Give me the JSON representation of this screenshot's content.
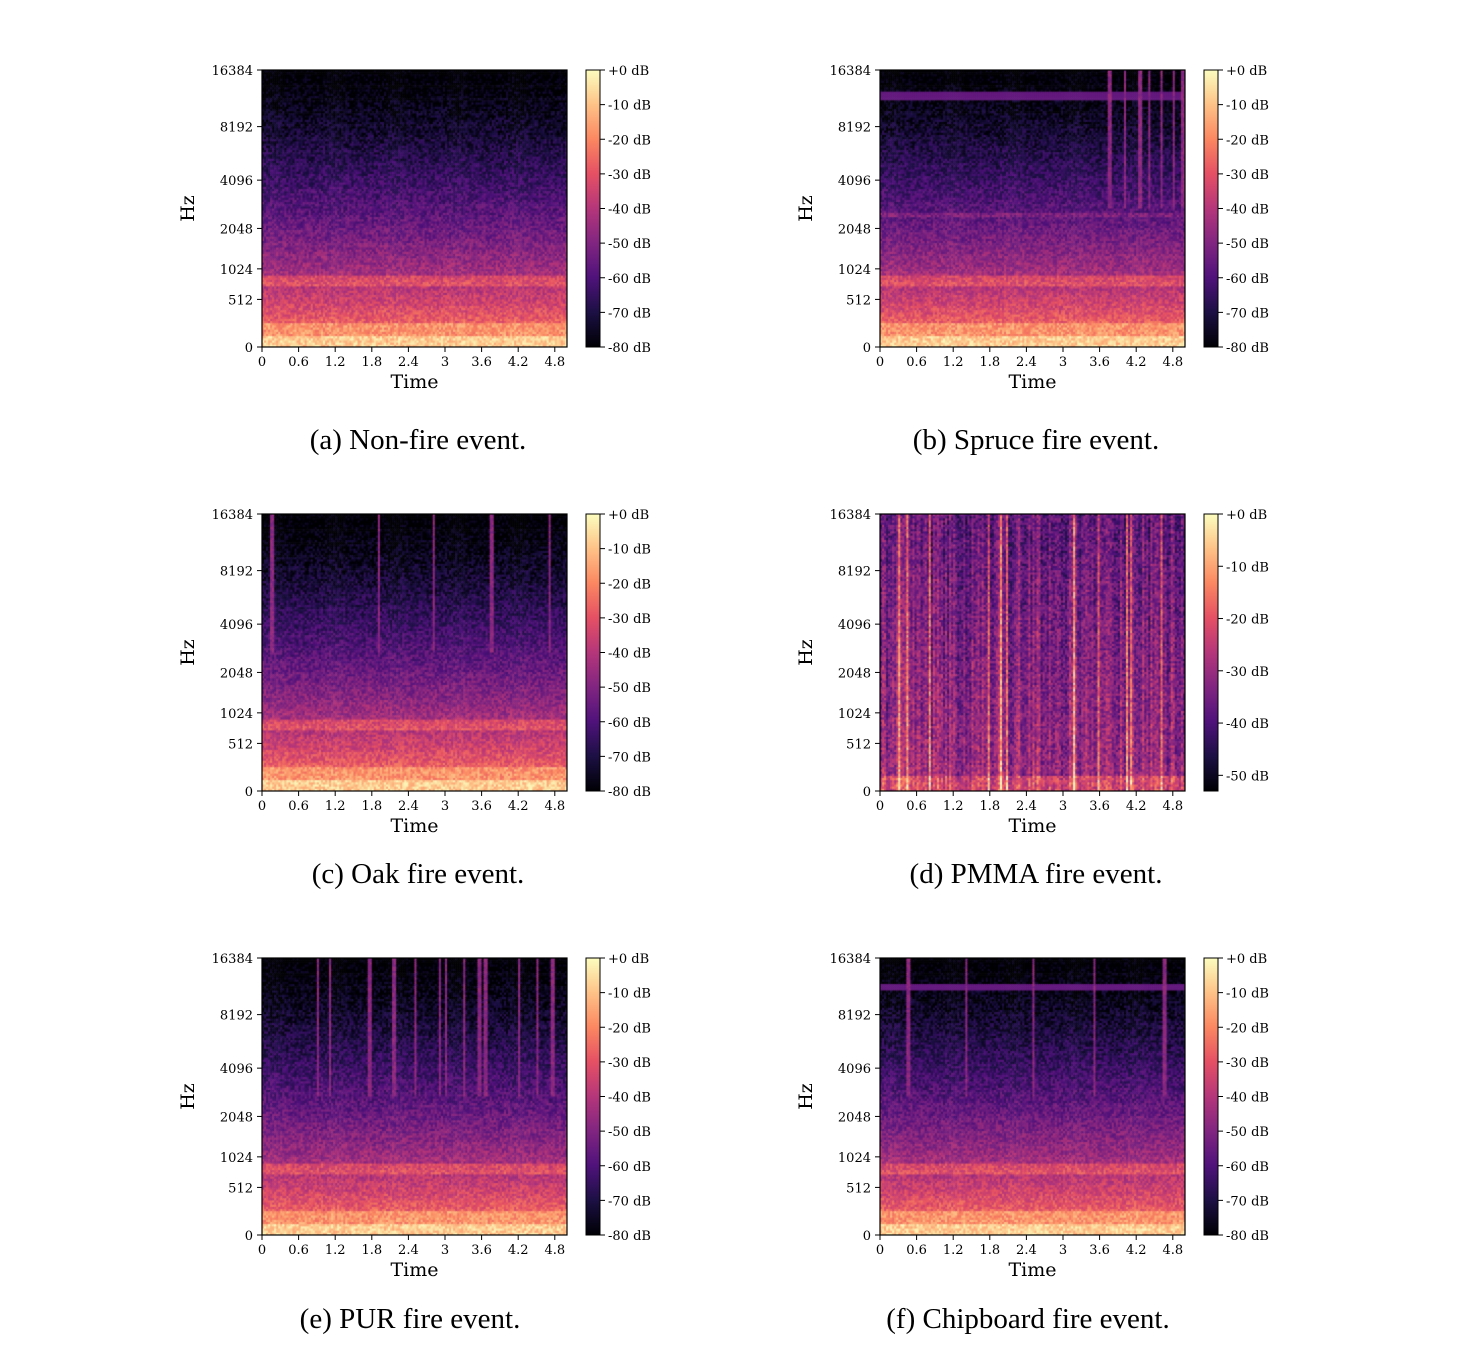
{
  "figure": {
    "panels": [
      {
        "caption": "(a) Non-fire event.",
        "variant": "nonfire"
      },
      {
        "caption": "(b) Spruce fire event.",
        "variant": "spruce"
      },
      {
        "caption": "(c) Oak fire event.",
        "variant": "oak"
      },
      {
        "caption": "(d) PMMA fire event.",
        "variant": "pmma"
      },
      {
        "caption": "(e) PUR fire event.",
        "variant": "pur"
      },
      {
        "caption": "(f) Chipboard fire event.",
        "variant": "chipboard"
      }
    ]
  },
  "chart_data": [
    {
      "type": "heatmap",
      "title": "",
      "xlabel": "Time",
      "ylabel": "Hz",
      "xticks": [
        "0",
        "0.6",
        "1.2",
        "1.8",
        "2.4",
        "3",
        "3.6",
        "4.2",
        "4.8"
      ],
      "yticks": [
        "0",
        "512",
        "1024",
        "2048",
        "4096",
        "8192",
        "16384"
      ],
      "xlim": [
        0,
        5
      ],
      "yscale": "mel",
      "colorbar_ticks": [
        "+0 dB",
        "-10 dB",
        "-20 dB",
        "-30 dB",
        "-40 dB",
        "-50 dB",
        "-60 dB",
        "-70 dB",
        "-80 dB"
      ],
      "colorbar_range": [
        -80,
        0
      ],
      "colormap": "magma"
    },
    {
      "type": "heatmap",
      "title": "",
      "xlabel": "Time",
      "ylabel": "Hz",
      "xticks": [
        "0",
        "0.6",
        "1.2",
        "1.8",
        "2.4",
        "3",
        "3.6",
        "4.2",
        "4.8"
      ],
      "yticks": [
        "0",
        "512",
        "1024",
        "2048",
        "4096",
        "8192",
        "16384"
      ],
      "xlim": [
        0,
        5
      ],
      "yscale": "mel",
      "colorbar_ticks": [
        "+0 dB",
        "-10 dB",
        "-20 dB",
        "-30 dB",
        "-40 dB",
        "-50 dB",
        "-60 dB",
        "-70 dB",
        "-80 dB"
      ],
      "colorbar_range": [
        -80,
        0
      ],
      "colormap": "magma"
    },
    {
      "type": "heatmap",
      "title": "",
      "xlabel": "Time",
      "ylabel": "Hz",
      "xticks": [
        "0",
        "0.6",
        "1.2",
        "1.8",
        "2.4",
        "3",
        "3.6",
        "4.2",
        "4.8"
      ],
      "yticks": [
        "0",
        "512",
        "1024",
        "2048",
        "4096",
        "8192",
        "16384"
      ],
      "xlim": [
        0,
        5
      ],
      "yscale": "mel",
      "colorbar_ticks": [
        "+0 dB",
        "-10 dB",
        "-20 dB",
        "-30 dB",
        "-40 dB",
        "-50 dB",
        "-60 dB",
        "-70 dB",
        "-80 dB"
      ],
      "colorbar_range": [
        -80,
        0
      ],
      "colormap": "magma"
    },
    {
      "type": "heatmap",
      "title": "",
      "xlabel": "Time",
      "ylabel": "Hz",
      "xticks": [
        "0",
        "0.6",
        "1.2",
        "1.8",
        "2.4",
        "3",
        "3.6",
        "4.2",
        "4.8"
      ],
      "yticks": [
        "0",
        "512",
        "1024",
        "2048",
        "4096",
        "8192",
        "16384"
      ],
      "xlim": [
        0,
        5
      ],
      "yscale": "mel",
      "colorbar_ticks": [
        "+0 dB",
        "-10 dB",
        "-20 dB",
        "-30 dB",
        "-40 dB",
        "-50 dB"
      ],
      "colorbar_range": [
        -53,
        0
      ],
      "colormap": "magma"
    },
    {
      "type": "heatmap",
      "title": "",
      "xlabel": "Time",
      "ylabel": "Hz",
      "xticks": [
        "0",
        "0.6",
        "1.2",
        "1.8",
        "2.4",
        "3",
        "3.6",
        "4.2",
        "4.8"
      ],
      "yticks": [
        "0",
        "512",
        "1024",
        "2048",
        "4096",
        "8192",
        "16384"
      ],
      "xlim": [
        0,
        5
      ],
      "yscale": "mel",
      "colorbar_ticks": [
        "+0 dB",
        "-10 dB",
        "-20 dB",
        "-30 dB",
        "-40 dB",
        "-50 dB",
        "-60 dB",
        "-70 dB",
        "-80 dB"
      ],
      "colorbar_range": [
        -80,
        0
      ],
      "colormap": "magma"
    },
    {
      "type": "heatmap",
      "title": "",
      "xlabel": "Time",
      "ylabel": "Hz",
      "xticks": [
        "0",
        "0.6",
        "1.2",
        "1.8",
        "2.4",
        "3",
        "3.6",
        "4.2",
        "4.8"
      ],
      "yticks": [
        "0",
        "512",
        "1024",
        "2048",
        "4096",
        "8192",
        "16384"
      ],
      "xlim": [
        0,
        5
      ],
      "yscale": "mel",
      "colorbar_ticks": [
        "+0 dB",
        "-10 dB",
        "-20 dB",
        "-30 dB",
        "-40 dB",
        "-50 dB",
        "-60 dB",
        "-70 dB",
        "-80 dB"
      ],
      "colorbar_range": [
        -80,
        0
      ],
      "colormap": "magma"
    }
  ]
}
